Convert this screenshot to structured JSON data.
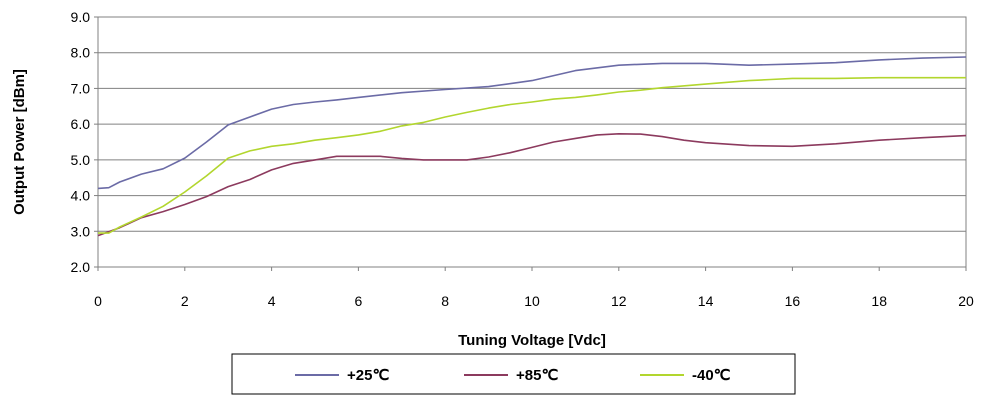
{
  "chart_data": {
    "type": "line",
    "xlabel": "Tuning Voltage [Vdc]",
    "ylabel": "Output Power [dBm]",
    "xlim": [
      0,
      20
    ],
    "ylim": [
      2.0,
      9.0
    ],
    "x_ticks": [
      "0",
      "2",
      "4",
      "6",
      "8",
      "10",
      "12",
      "14",
      "16",
      "18",
      "20"
    ],
    "y_ticks": [
      "2.0",
      "3.0",
      "4.0",
      "5.0",
      "6.0",
      "7.0",
      "8.0",
      "9.0"
    ],
    "grid": true,
    "legend_position": "bottom",
    "series": [
      {
        "name": "+25℃",
        "color": "#6b6ba6",
        "points": [
          [
            0,
            4.2
          ],
          [
            0.25,
            4.22
          ],
          [
            0.5,
            4.38
          ],
          [
            1,
            4.6
          ],
          [
            1.5,
            4.75
          ],
          [
            2,
            5.05
          ],
          [
            2.5,
            5.5
          ],
          [
            3,
            5.98
          ],
          [
            3.5,
            6.2
          ],
          [
            4,
            6.42
          ],
          [
            4.5,
            6.55
          ],
          [
            5,
            6.62
          ],
          [
            5.5,
            6.68
          ],
          [
            6,
            6.75
          ],
          [
            7,
            6.88
          ],
          [
            8,
            6.97
          ],
          [
            9,
            7.05
          ],
          [
            10,
            7.22
          ],
          [
            11,
            7.5
          ],
          [
            12,
            7.65
          ],
          [
            13,
            7.7
          ],
          [
            14,
            7.7
          ],
          [
            15,
            7.65
          ],
          [
            16,
            7.68
          ],
          [
            17,
            7.72
          ],
          [
            18,
            7.8
          ],
          [
            19,
            7.85
          ],
          [
            20,
            7.88
          ]
        ]
      },
      {
        "name": "+85℃",
        "color": "#8c3a5e",
        "points": [
          [
            0,
            2.88
          ],
          [
            0.5,
            3.1
          ],
          [
            1,
            3.38
          ],
          [
            1.5,
            3.55
          ],
          [
            2,
            3.75
          ],
          [
            2.5,
            3.97
          ],
          [
            3,
            4.25
          ],
          [
            3.5,
            4.45
          ],
          [
            4,
            4.72
          ],
          [
            4.5,
            4.9
          ],
          [
            5,
            5.0
          ],
          [
            5.5,
            5.1
          ],
          [
            6,
            5.1
          ],
          [
            6.5,
            5.1
          ],
          [
            7,
            5.04
          ],
          [
            7.5,
            5.0
          ],
          [
            8,
            5.0
          ],
          [
            8.5,
            5.0
          ],
          [
            9,
            5.08
          ],
          [
            9.5,
            5.2
          ],
          [
            10,
            5.35
          ],
          [
            10.5,
            5.5
          ],
          [
            11,
            5.6
          ],
          [
            11.5,
            5.7
          ],
          [
            12,
            5.73
          ],
          [
            12.5,
            5.72
          ],
          [
            13,
            5.65
          ],
          [
            13.5,
            5.55
          ],
          [
            14,
            5.48
          ],
          [
            15,
            5.4
          ],
          [
            16,
            5.38
          ],
          [
            17,
            5.45
          ],
          [
            18,
            5.55
          ],
          [
            19,
            5.62
          ],
          [
            20,
            5.68
          ]
        ]
      },
      {
        "name": "-40℃",
        "color": "#b2d62e",
        "points": [
          [
            0,
            2.95
          ],
          [
            0.25,
            2.95
          ],
          [
            0.5,
            3.12
          ],
          [
            1,
            3.4
          ],
          [
            1.5,
            3.7
          ],
          [
            2,
            4.1
          ],
          [
            2.5,
            4.55
          ],
          [
            3,
            5.05
          ],
          [
            3.5,
            5.25
          ],
          [
            4,
            5.38
          ],
          [
            4.5,
            5.45
          ],
          [
            5,
            5.55
          ],
          [
            5.5,
            5.62
          ],
          [
            6,
            5.7
          ],
          [
            6.5,
            5.8
          ],
          [
            7,
            5.95
          ],
          [
            7.5,
            6.05
          ],
          [
            8,
            6.2
          ],
          [
            8.5,
            6.33
          ],
          [
            9,
            6.45
          ],
          [
            9.5,
            6.55
          ],
          [
            10,
            6.62
          ],
          [
            10.5,
            6.7
          ],
          [
            11,
            6.75
          ],
          [
            11.5,
            6.82
          ],
          [
            12,
            6.9
          ],
          [
            12.5,
            6.95
          ],
          [
            13,
            7.02
          ],
          [
            14,
            7.12
          ],
          [
            15,
            7.22
          ],
          [
            15.5,
            7.25
          ],
          [
            16,
            7.28
          ],
          [
            17,
            7.28
          ],
          [
            18,
            7.3
          ],
          [
            19,
            7.3
          ],
          [
            20,
            7.3
          ]
        ]
      }
    ]
  }
}
